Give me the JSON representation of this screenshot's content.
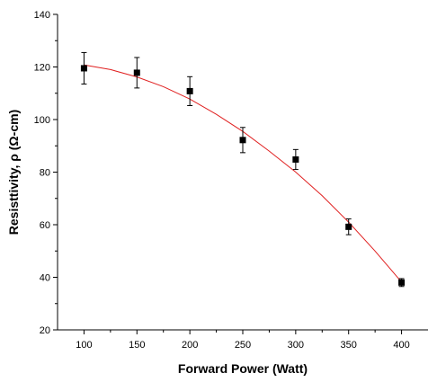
{
  "chart_data": {
    "type": "scatter",
    "title": "",
    "xlabel": "Forward Power (Watt)",
    "ylabel": "Resisttivity, ρ (Ω-cm)",
    "xlim": [
      75,
      425
    ],
    "ylim": [
      20,
      140
    ],
    "xticks": [
      100,
      150,
      200,
      250,
      300,
      350,
      400
    ],
    "yticks": [
      20,
      40,
      60,
      80,
      100,
      120,
      140
    ],
    "grid": false,
    "colors": {
      "points": "#000000",
      "fit": "#e02020",
      "axis": "#000000"
    },
    "series": [
      {
        "marker": "square",
        "x": [
          100,
          150,
          200,
          250,
          300,
          350,
          400
        ],
        "y": [
          119.5,
          117.8,
          110.8,
          92.2,
          84.8,
          59.2,
          38.0
        ],
        "yerr": [
          6.0,
          5.8,
          5.5,
          4.8,
          3.8,
          3.0,
          1.5
        ]
      }
    ],
    "fit_curve": {
      "x": [
        100,
        125,
        150,
        175,
        200,
        225,
        250,
        275,
        300,
        325,
        350,
        375,
        400
      ],
      "y": [
        120.8,
        119.0,
        116.2,
        112.5,
        107.8,
        102.0,
        95.5,
        88.0,
        80.0,
        71.0,
        61.0,
        50.0,
        38.2
      ]
    }
  }
}
